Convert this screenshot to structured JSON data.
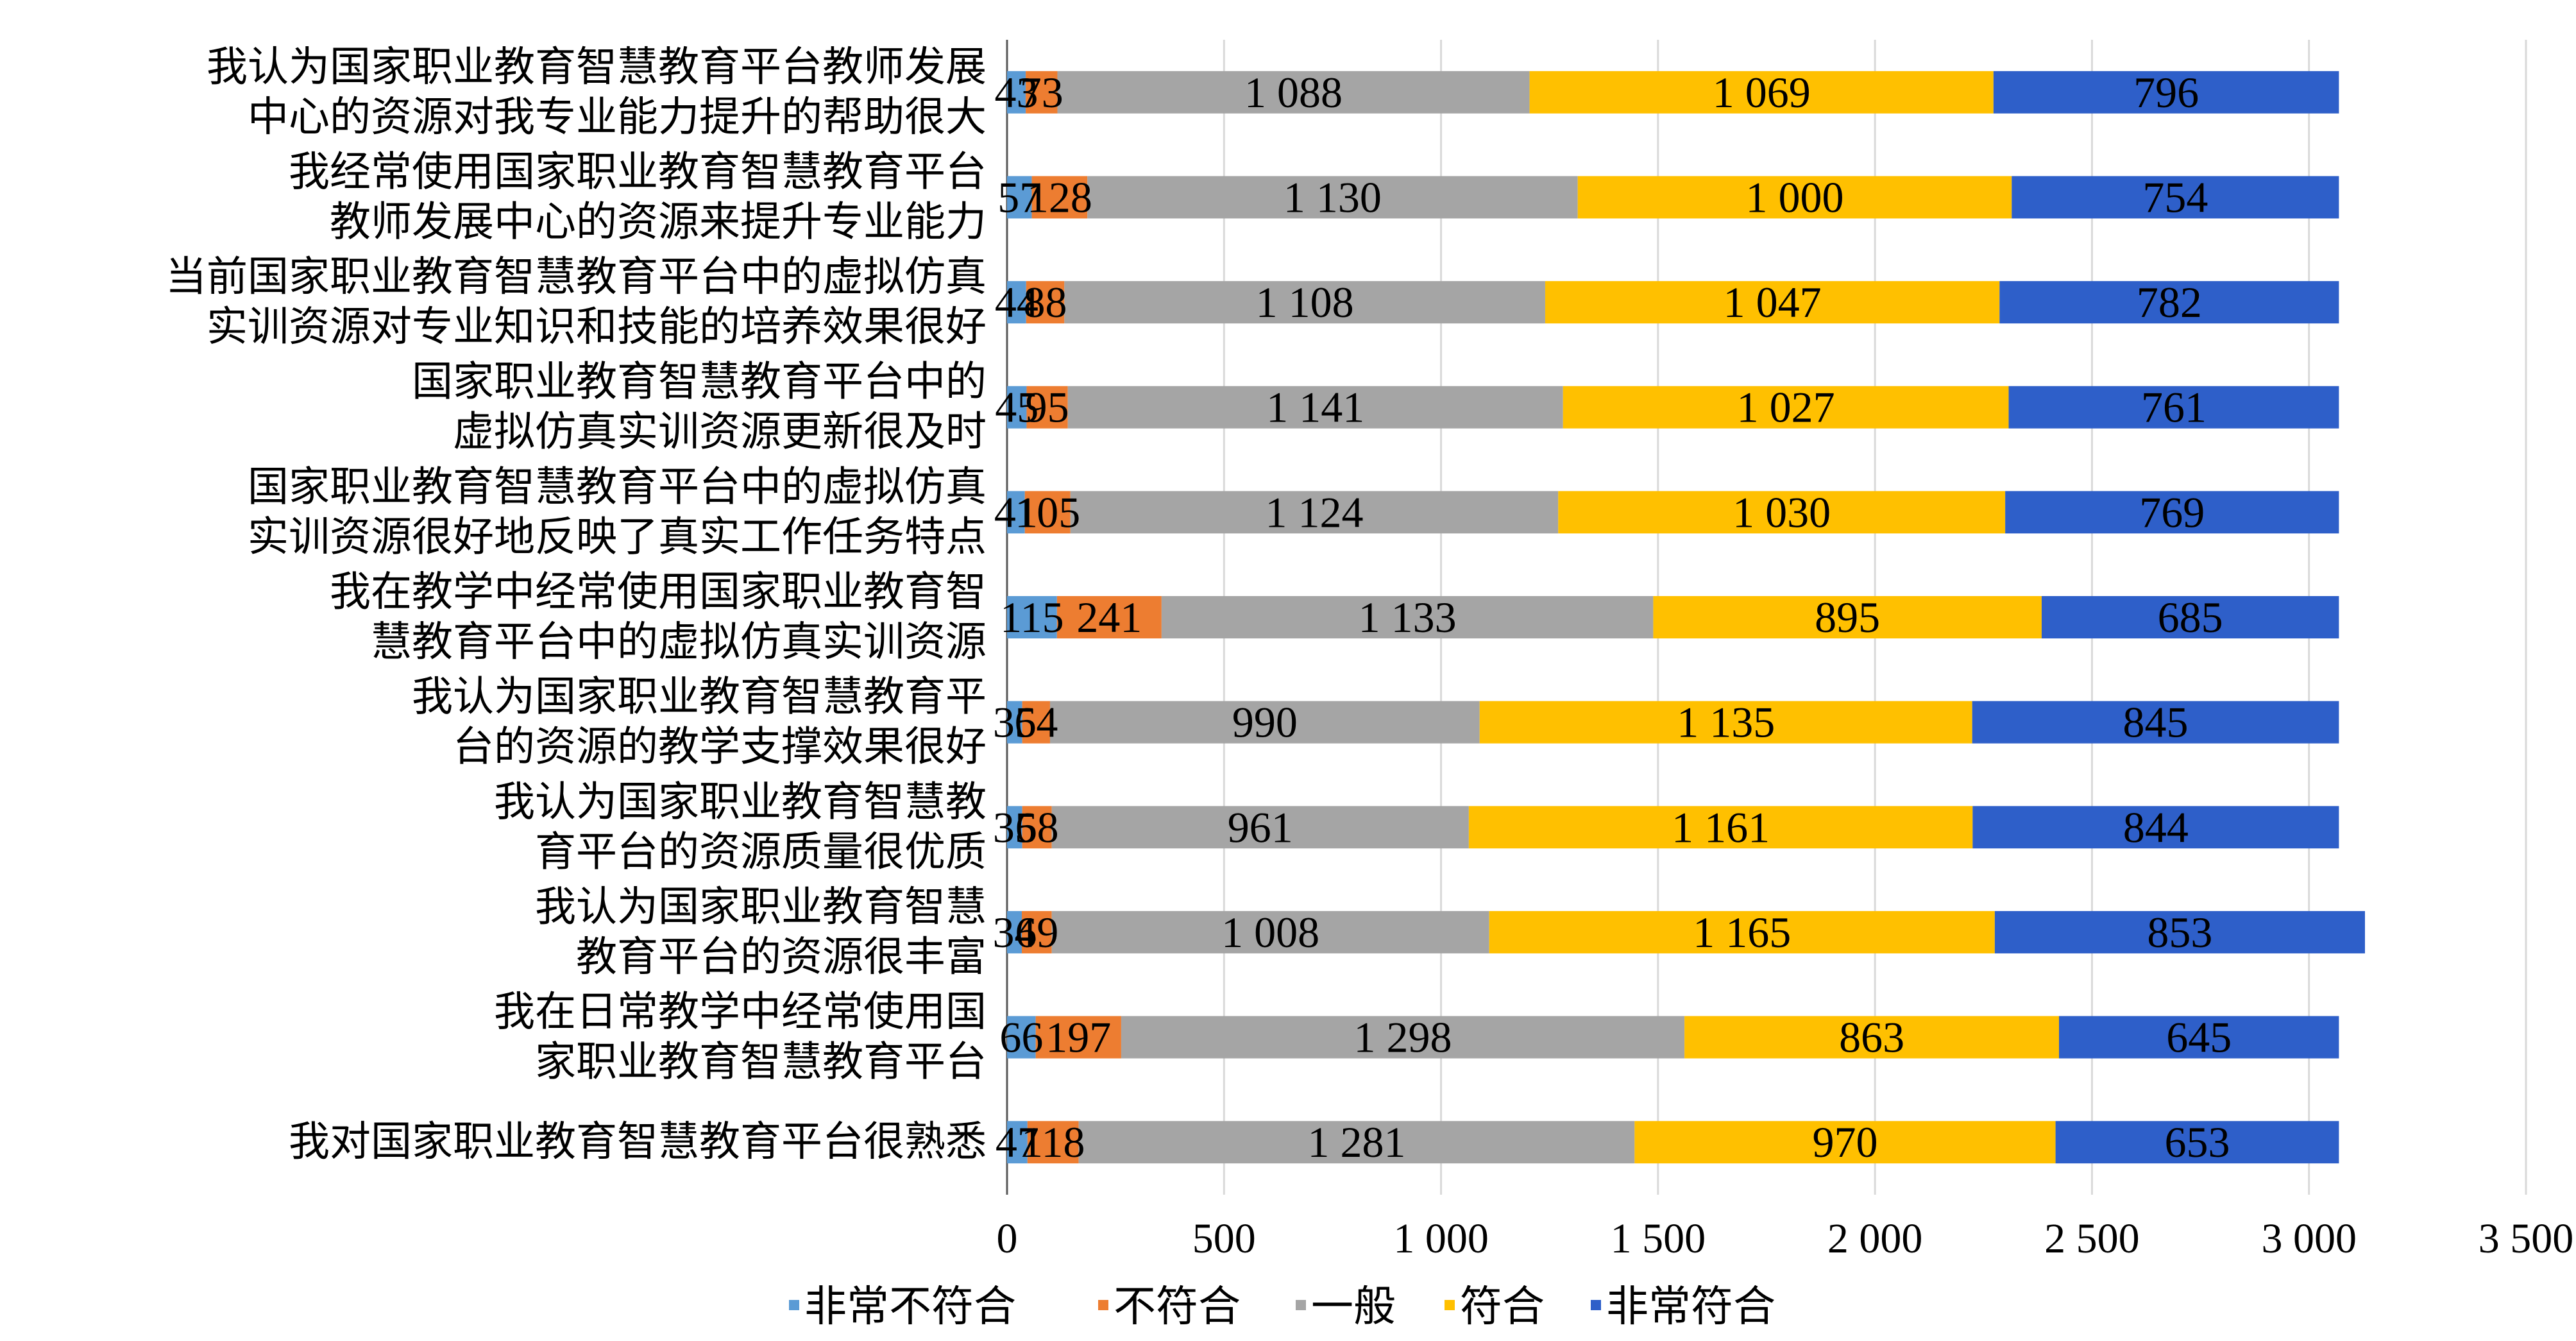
{
  "chart_data": {
    "type": "bar",
    "orientation": "horizontal",
    "stacked": true,
    "categories": [
      [
        "我认为国家职业教育智慧教育平台教师发展",
        "中心的资源对我专业能力提升的帮助很大"
      ],
      [
        "我经常使用国家职业教育智慧教育平台",
        "教师发展中心的资源来提升专业能力"
      ],
      [
        "当前国家职业教育智慧教育平台中的虚拟仿真",
        "实训资源对专业知识和技能的培养效果很好"
      ],
      [
        "国家职业教育智慧教育平台中的",
        "虚拟仿真实训资源更新很及时"
      ],
      [
        "国家职业教育智慧教育平台中的虚拟仿真",
        "实训资源很好地反映了真实工作任务特点"
      ],
      [
        "我在教学中经常使用国家职业教育智",
        "慧教育平台中的虚拟仿真实训资源"
      ],
      [
        "我认为国家职业教育智慧教育平",
        "台的资源的教学支撑效果很好"
      ],
      [
        "我认为国家职业教育智慧教",
        "育平台的资源质量很优质"
      ],
      [
        "我认为国家职业教育智慧",
        "教育平台的资源很丰富"
      ],
      [
        "我在日常教学中经常使用国",
        "家职业教育智慧教育平台"
      ],
      [
        "我对国家职业教育智慧教育平台很熟悉"
      ]
    ],
    "series": [
      {
        "name": "非常不符合",
        "color": "#5b9bd5",
        "values": [
          43,
          57,
          44,
          45,
          41,
          115,
          35,
          35,
          34,
          66,
          47
        ],
        "labels": [
          "43",
          "57",
          "44",
          "45",
          "41",
          "115",
          "35",
          "35",
          "34",
          "66",
          "47"
        ]
      },
      {
        "name": "不符合",
        "color": "#ed7d31",
        "values": [
          73,
          128,
          88,
          95,
          105,
          241,
          64,
          68,
          69,
          197,
          118
        ],
        "labels": [
          "73",
          "128",
          "88",
          "95",
          "105",
          "241",
          "64",
          "68",
          "69",
          "197",
          "118"
        ]
      },
      {
        "name": "一般",
        "color": "#a5a5a5",
        "values": [
          1088,
          1130,
          1108,
          1141,
          1124,
          1133,
          990,
          961,
          1008,
          1298,
          1281
        ],
        "labels": [
          "1 088",
          "1 130",
          "1 108",
          "1 141",
          "1 124",
          "1 133",
          "990",
          "961",
          "1 008",
          "1 298",
          "1 281"
        ]
      },
      {
        "name": "符合",
        "color": "#ffc000",
        "values": [
          1069,
          1000,
          1047,
          1027,
          1030,
          895,
          1135,
          1161,
          1165,
          863,
          970
        ],
        "labels": [
          "1 069",
          "1 000",
          "1 047",
          "1 027",
          "1 030",
          "895",
          "1 135",
          "1 161",
          "1 165",
          "863",
          "970"
        ]
      },
      {
        "name": "非常符合",
        "color": "#2e5fc9",
        "values": [
          796,
          754,
          782,
          761,
          769,
          685,
          845,
          844,
          853,
          645,
          653
        ],
        "labels": [
          "796",
          "754",
          "782",
          "761",
          "769",
          "685",
          "845",
          "844",
          "853",
          "645",
          "653"
        ]
      }
    ],
    "xlim": [
      0,
      3500
    ],
    "x_ticks": [
      0,
      500,
      1000,
      1500,
      2000,
      2500,
      3000,
      3500
    ],
    "x_tick_labels": [
      "0",
      "500",
      "1 000",
      "1 500",
      "2 000",
      "2 500",
      "3 000",
      "3 500"
    ],
    "grid": true,
    "legend": "bottom",
    "title": "",
    "xlabel": "",
    "ylabel": ""
  }
}
